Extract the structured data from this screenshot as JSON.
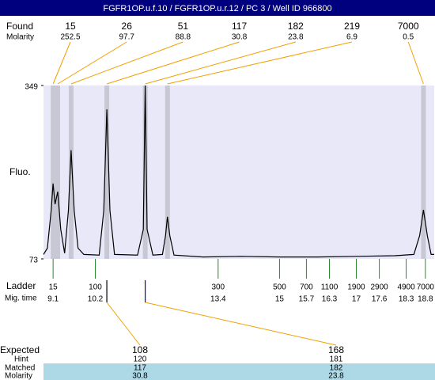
{
  "title": "FGFR1OP.u.f.10 / FGFR1OP.u.r.12 / PC 3 / Well ID 966800",
  "found": {
    "label": "Found",
    "molarity_label": "Molarity",
    "peaks": [
      {
        "size": 15,
        "molarity": 252.5,
        "time": 9.1
      },
      {
        "size": 26,
        "molarity": 97.7,
        "time": 9.22
      },
      {
        "size": 51,
        "molarity": 88.8,
        "time": 9.57
      },
      {
        "size": 117,
        "molarity": 30.8,
        "time": 10.5
      },
      {
        "size": 182,
        "molarity": 23.8,
        "time": 11.5
      },
      {
        "size": 219,
        "molarity": 6.9,
        "time": 12.08
      },
      {
        "size": 7000,
        "molarity": 0.5,
        "time": 18.75
      }
    ]
  },
  "chart_data": {
    "type": "line",
    "y_label": "Fluo.",
    "color": "#000000",
    "x": [
      8.85,
      8.95,
      9.05,
      9.1,
      9.15,
      9.22,
      9.3,
      9.4,
      9.5,
      9.57,
      9.65,
      9.75,
      9.9,
      10.3,
      10.42,
      10.5,
      10.58,
      10.7,
      11.3,
      11.45,
      11.5,
      11.55,
      11.7,
      11.95,
      12.03,
      12.08,
      12.14,
      12.25,
      13,
      14,
      15,
      16,
      17,
      18,
      18.5,
      18.65,
      18.75,
      18.85,
      18.95,
      19.03
    ],
    "values": [
      80,
      90,
      150,
      193,
      160,
      180,
      120,
      82,
      150,
      246,
      150,
      90,
      80,
      79,
      150,
      311,
      150,
      80,
      79,
      120,
      349,
      120,
      79,
      80,
      110,
      140,
      110,
      79,
      76,
      77,
      76,
      76,
      77,
      78,
      80,
      110,
      151,
      110,
      80,
      80
    ],
    "xlim": [
      8.85,
      19.03
    ],
    "ylim": [
      73,
      349
    ],
    "yticks": [
      73,
      349
    ]
  },
  "ladder": {
    "label": "Ladder",
    "time_label": "Mig. time",
    "sizes": [
      15,
      100,
      300,
      500,
      700,
      1100,
      1900,
      2900,
      4900,
      7000
    ],
    "times": [
      9.1,
      10.2,
      13.4,
      15,
      15.7,
      16.3,
      17,
      17.6,
      18.3,
      18.8
    ]
  },
  "expected": {
    "label": "Expected",
    "hint_label": "Hint",
    "matched_label": "Matched",
    "molarity_label": "Molarity",
    "columns": [
      {
        "expected": 108,
        "hint": 120,
        "matched": 117,
        "molarity": 30.8,
        "time": 10.5
      },
      {
        "expected": 168,
        "hint": 181,
        "matched": 182,
        "molarity": 23.8,
        "time": 11.5
      }
    ]
  }
}
